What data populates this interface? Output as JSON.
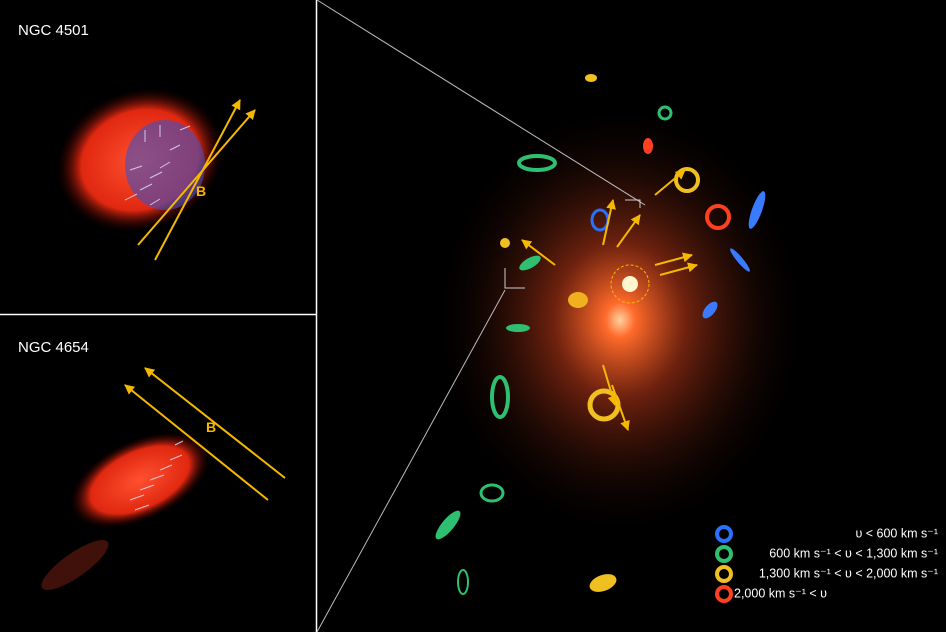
{
  "panels": [
    {
      "label": "NGC 4501",
      "marker": "B"
    },
    {
      "label": "NGC 4654",
      "marker": "B"
    }
  ],
  "legend": [
    "υ < 600 km s⁻¹",
    "600 km s⁻¹ < υ < 1,300 km s⁻¹",
    "1,300 km s⁻¹ < υ < 2,000 km s⁻¹",
    "2,000 km s⁻¹ < υ"
  ]
}
